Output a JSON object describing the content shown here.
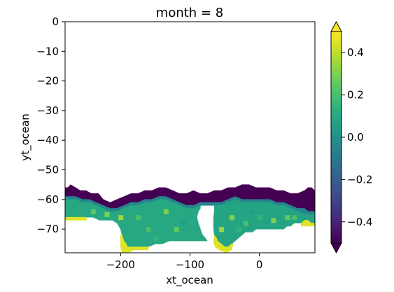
{
  "chart_data": {
    "type": "heatmap",
    "title": "month = 8",
    "xlabel": "xt_ocean",
    "ylabel": "yt_ocean",
    "xlim": [
      -280,
      80
    ],
    "ylim": [
      -78,
      0
    ],
    "x_ticks": [
      -200,
      -100,
      0
    ],
    "y_ticks": [
      0,
      -10,
      -20,
      -30,
      -40,
      -50,
      -60,
      -70
    ],
    "colorbar": {
      "range": [
        -0.5,
        0.5
      ],
      "ticks": [
        0.4,
        0.2,
        0.0,
        -0.2,
        -0.4
      ],
      "extend": "both",
      "colormap": "viridis"
    },
    "field_summary": {
      "description_of_values": "Southern Ocean band between about 54S and 78S",
      "northern_edge_values": -0.5,
      "interior_typical_values": 0.1,
      "southern_edge_values": 0.45
    },
    "regions": [
      {
        "name": "northern-edge-band",
        "value": -0.5,
        "outline": [
          [
            -280,
            -56
          ],
          [
            -276,
            -56
          ],
          [
            -272,
            -55
          ],
          [
            -265,
            -56
          ],
          [
            -258,
            -57
          ],
          [
            -250,
            -57
          ],
          [
            -242,
            -58
          ],
          [
            -232,
            -58
          ],
          [
            -225,
            -60
          ],
          [
            -215,
            -61
          ],
          [
            -205,
            -60
          ],
          [
            -195,
            -59
          ],
          [
            -185,
            -58
          ],
          [
            -175,
            -58
          ],
          [
            -165,
            -57
          ],
          [
            -155,
            -57
          ],
          [
            -145,
            -56
          ],
          [
            -135,
            -56
          ],
          [
            -125,
            -57
          ],
          [
            -115,
            -58
          ],
          [
            -105,
            -58
          ],
          [
            -95,
            -57
          ],
          [
            -85,
            -58
          ],
          [
            -75,
            -58
          ],
          [
            -65,
            -57
          ],
          [
            -55,
            -57
          ],
          [
            -45,
            -56
          ],
          [
            -35,
            -56
          ],
          [
            -25,
            -55
          ],
          [
            -15,
            -55
          ],
          [
            -5,
            -56
          ],
          [
            5,
            -56
          ],
          [
            15,
            -56
          ],
          [
            25,
            -57
          ],
          [
            35,
            -57
          ],
          [
            45,
            -58
          ],
          [
            55,
            -58
          ],
          [
            65,
            -57
          ],
          [
            70,
            -56
          ],
          [
            75,
            -56
          ],
          [
            80,
            -57
          ],
          [
            80,
            -64
          ],
          [
            70,
            -64
          ],
          [
            65,
            -63
          ],
          [
            55,
            -63
          ],
          [
            45,
            -62
          ],
          [
            35,
            -61
          ],
          [
            25,
            -61
          ],
          [
            15,
            -60
          ],
          [
            5,
            -60
          ],
          [
            -5,
            -60
          ],
          [
            -15,
            -60
          ],
          [
            -25,
            -60
          ],
          [
            -35,
            -59
          ],
          [
            -45,
            -60
          ],
          [
            -55,
            -61
          ],
          [
            -65,
            -61
          ],
          [
            -75,
            -61
          ],
          [
            -85,
            -61
          ],
          [
            -95,
            -62
          ],
          [
            -105,
            -62
          ],
          [
            -115,
            -61
          ],
          [
            -125,
            -60
          ],
          [
            -135,
            -59
          ],
          [
            -145,
            -59
          ],
          [
            -155,
            -60
          ],
          [
            -165,
            -60
          ],
          [
            -175,
            -61
          ],
          [
            -185,
            -61
          ],
          [
            -195,
            -62
          ],
          [
            -205,
            -63
          ],
          [
            -215,
            -63
          ],
          [
            -225,
            -62
          ],
          [
            -235,
            -61
          ],
          [
            -245,
            -60
          ],
          [
            -255,
            -60
          ],
          [
            -265,
            -59
          ],
          [
            -275,
            -59
          ],
          [
            -280,
            -59
          ]
        ]
      },
      {
        "name": "transition-band",
        "value": -0.05,
        "outline": [
          [
            -280,
            -59
          ],
          [
            -275,
            -59
          ],
          [
            -265,
            -59
          ],
          [
            -255,
            -60
          ],
          [
            -245,
            -60
          ],
          [
            -235,
            -61
          ],
          [
            -225,
            -62
          ],
          [
            -215,
            -63
          ],
          [
            -205,
            -63
          ],
          [
            -195,
            -62
          ],
          [
            -185,
            -61
          ],
          [
            -175,
            -61
          ],
          [
            -165,
            -60
          ],
          [
            -155,
            -60
          ],
          [
            -145,
            -59
          ],
          [
            -135,
            -59
          ],
          [
            -125,
            -60
          ],
          [
            -115,
            -61
          ],
          [
            -105,
            -62
          ],
          [
            -95,
            -62
          ],
          [
            -85,
            -61
          ],
          [
            -75,
            -61
          ],
          [
            -65,
            -61
          ],
          [
            -55,
            -61
          ],
          [
            -45,
            -60
          ],
          [
            -35,
            -59
          ],
          [
            -25,
            -60
          ],
          [
            -15,
            -60
          ],
          [
            -5,
            -60
          ],
          [
            5,
            -60
          ],
          [
            15,
            -60
          ],
          [
            25,
            -61
          ],
          [
            35,
            -61
          ],
          [
            45,
            -62
          ],
          [
            55,
            -63
          ],
          [
            65,
            -63
          ],
          [
            70,
            -64
          ],
          [
            80,
            -64
          ],
          [
            80,
            -65
          ],
          [
            65,
            -65
          ],
          [
            55,
            -64
          ],
          [
            45,
            -63
          ],
          [
            35,
            -62
          ],
          [
            25,
            -62
          ],
          [
            15,
            -61
          ],
          [
            5,
            -61
          ],
          [
            -5,
            -61
          ],
          [
            -15,
            -61
          ],
          [
            -25,
            -61
          ],
          [
            -35,
            -60
          ],
          [
            -45,
            -61
          ],
          [
            -55,
            -62
          ],
          [
            -65,
            -62
          ],
          [
            -75,
            -62
          ],
          [
            -85,
            -62
          ],
          [
            -95,
            -63
          ],
          [
            -105,
            -63
          ],
          [
            -115,
            -62
          ],
          [
            -125,
            -61
          ],
          [
            -135,
            -60
          ],
          [
            -145,
            -60
          ],
          [
            -155,
            -61
          ],
          [
            -165,
            -61
          ],
          [
            -175,
            -62
          ],
          [
            -185,
            -62
          ],
          [
            -195,
            -63
          ],
          [
            -205,
            -64
          ],
          [
            -215,
            -64
          ],
          [
            -225,
            -63
          ],
          [
            -235,
            -62
          ],
          [
            -245,
            -61
          ],
          [
            -255,
            -61
          ],
          [
            -265,
            -60
          ],
          [
            -280,
            -60
          ]
        ]
      },
      {
        "name": "ross-sector-interior",
        "value": 0.1,
        "outline": [
          [
            -280,
            -60
          ],
          [
            -265,
            -60
          ],
          [
            -255,
            -61
          ],
          [
            -245,
            -61
          ],
          [
            -235,
            -62
          ],
          [
            -225,
            -63
          ],
          [
            -215,
            -64
          ],
          [
            -205,
            -64
          ],
          [
            -195,
            -63
          ],
          [
            -185,
            -62
          ],
          [
            -175,
            -62
          ],
          [
            -165,
            -61
          ],
          [
            -155,
            -61
          ],
          [
            -145,
            -60
          ],
          [
            -135,
            -60
          ],
          [
            -125,
            -61
          ],
          [
            -115,
            -62
          ],
          [
            -105,
            -63
          ],
          [
            -95,
            -63
          ],
          [
            -85,
            -62
          ],
          [
            -85,
            -63
          ],
          [
            -88,
            -64
          ],
          [
            -90,
            -66
          ],
          [
            -88,
            -68
          ],
          [
            -85,
            -70
          ],
          [
            -82,
            -72
          ],
          [
            -78,
            -73
          ],
          [
            -75,
            -74
          ],
          [
            -80,
            -74
          ],
          [
            -90,
            -74
          ],
          [
            -100,
            -74
          ],
          [
            -110,
            -74
          ],
          [
            -120,
            -74
          ],
          [
            -130,
            -74
          ],
          [
            -140,
            -75
          ],
          [
            -150,
            -75
          ],
          [
            -160,
            -76
          ],
          [
            -170,
            -76
          ],
          [
            -180,
            -76
          ],
          [
            -188,
            -77
          ],
          [
            -190,
            -76
          ],
          [
            -192,
            -75
          ],
          [
            -195,
            -74
          ],
          [
            -198,
            -72
          ],
          [
            -200,
            -70
          ],
          [
            -205,
            -68
          ],
          [
            -212,
            -67
          ],
          [
            -220,
            -67
          ],
          [
            -230,
            -67
          ],
          [
            -240,
            -66
          ],
          [
            -250,
            -66
          ],
          [
            -260,
            -66
          ],
          [
            -270,
            -66
          ],
          [
            -280,
            -66
          ]
        ]
      },
      {
        "name": "weddell-sector-interior",
        "value": 0.08,
        "outline": [
          [
            -65,
            -62
          ],
          [
            -55,
            -62
          ],
          [
            -45,
            -61
          ],
          [
            -35,
            -60
          ],
          [
            -25,
            -61
          ],
          [
            -15,
            -61
          ],
          [
            -5,
            -61
          ],
          [
            5,
            -61
          ],
          [
            15,
            -61
          ],
          [
            25,
            -62
          ],
          [
            35,
            -62
          ],
          [
            45,
            -63
          ],
          [
            55,
            -64
          ],
          [
            65,
            -65
          ],
          [
            80,
            -65
          ],
          [
            80,
            -68
          ],
          [
            75,
            -68
          ],
          [
            70,
            -67
          ],
          [
            65,
            -67
          ],
          [
            60,
            -68
          ],
          [
            55,
            -68
          ],
          [
            50,
            -68
          ],
          [
            45,
            -69
          ],
          [
            40,
            -69
          ],
          [
            35,
            -70
          ],
          [
            30,
            -70
          ],
          [
            25,
            -70
          ],
          [
            20,
            -70
          ],
          [
            15,
            -70
          ],
          [
            10,
            -70
          ],
          [
            5,
            -70
          ],
          [
            0,
            -70
          ],
          [
            -5,
            -70
          ],
          [
            -10,
            -71
          ],
          [
            -15,
            -71
          ],
          [
            -20,
            -71
          ],
          [
            -25,
            -72
          ],
          [
            -30,
            -73
          ],
          [
            -35,
            -74
          ],
          [
            -40,
            -75
          ],
          [
            -45,
            -76
          ],
          [
            -50,
            -76
          ],
          [
            -55,
            -75
          ],
          [
            -60,
            -74
          ],
          [
            -62,
            -73
          ],
          [
            -65,
            -72
          ],
          [
            -66,
            -70
          ],
          [
            -66,
            -68
          ],
          [
            -66,
            -66
          ],
          [
            -65,
            -64
          ]
        ]
      },
      {
        "name": "southern-edge-ross",
        "value": 0.45,
        "outline": [
          [
            -200,
            -72
          ],
          [
            -198,
            -72
          ],
          [
            -195,
            -74
          ],
          [
            -192,
            -75
          ],
          [
            -190,
            -76
          ],
          [
            -185,
            -76
          ],
          [
            -175,
            -76
          ],
          [
            -165,
            -76
          ],
          [
            -160,
            -76
          ],
          [
            -160,
            -77
          ],
          [
            -170,
            -77
          ],
          [
            -180,
            -77
          ],
          [
            -190,
            -78
          ],
          [
            -198,
            -78
          ],
          [
            -200,
            -76
          ]
        ]
      },
      {
        "name": "southern-edge-weddell",
        "value": 0.45,
        "outline": [
          [
            -65,
            -72
          ],
          [
            -62,
            -73
          ],
          [
            -60,
            -74
          ],
          [
            -55,
            -75
          ],
          [
            -50,
            -76
          ],
          [
            -45,
            -76
          ],
          [
            -40,
            -75
          ],
          [
            -38,
            -75
          ],
          [
            -40,
            -77
          ],
          [
            -48,
            -78
          ],
          [
            -58,
            -77
          ],
          [
            -64,
            -76
          ],
          [
            -66,
            -74
          ]
        ]
      },
      {
        "name": "southern-edge-west",
        "value": 0.45,
        "outline": [
          [
            -280,
            -66
          ],
          [
            -270,
            -66
          ],
          [
            -260,
            -66
          ],
          [
            -250,
            -66
          ],
          [
            -248,
            -67
          ],
          [
            -258,
            -67
          ],
          [
            -268,
            -67
          ],
          [
            -280,
            -67
          ]
        ]
      },
      {
        "name": "southern-edge-east",
        "value": 0.45,
        "outline": [
          [
            60,
            -68
          ],
          [
            65,
            -67
          ],
          [
            70,
            -67
          ],
          [
            75,
            -68
          ],
          [
            80,
            -68
          ],
          [
            80,
            -69
          ],
          [
            72,
            -69
          ],
          [
            65,
            -69
          ],
          [
            60,
            -69
          ]
        ]
      }
    ]
  }
}
